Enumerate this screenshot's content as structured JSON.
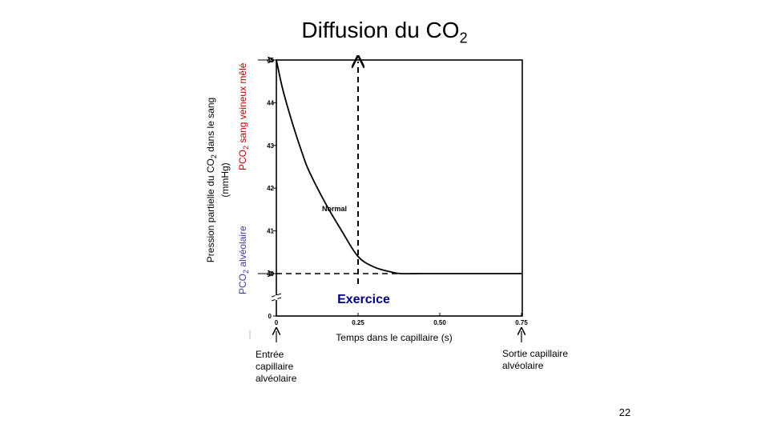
{
  "slide": {
    "title_main": "Diffusion du CO",
    "title_sub": "2",
    "number": "22"
  },
  "chart_data": {
    "type": "line",
    "xlabel": "Temps dans le capillaire (s)",
    "ylabel_line1_pre": "Pression partielle du CO",
    "ylabel_line1_sub": "2",
    "ylabel_line1_post": " dans le sang",
    "ylabel_line2": "(mmHg)",
    "x_ticks": [
      "0",
      "0.25",
      "0.50",
      "0.75"
    ],
    "y_ticks": [
      "40",
      "41",
      "42",
      "43",
      "44",
      "45"
    ],
    "y_zero_tick": "0",
    "xlim": [
      0,
      0.75
    ],
    "ylim": [
      40,
      45
    ],
    "series": [
      {
        "name": "Normal",
        "x": [
          0,
          0.02,
          0.05,
          0.08,
          0.1,
          0.15,
          0.2,
          0.25,
          0.3,
          0.35,
          0.38,
          0.45,
          0.55,
          0.65,
          0.75
        ],
        "y": [
          45,
          44.3,
          43.5,
          42.8,
          42.4,
          41.65,
          41.0,
          40.4,
          40.15,
          40.04,
          40,
          40,
          40,
          40,
          40
        ]
      }
    ],
    "annotations": {
      "exercise_label": "Exercice",
      "exercise_x": 0.25,
      "alveolar_level": 40,
      "venous_level": 45,
      "left_label_venous_pre": "PCO",
      "left_label_venous_sub": "2",
      "left_label_venous_post": " sang veineux mêlé",
      "left_label_alv_pre": "PCO",
      "left_label_alv_sub": "2",
      "left_label_alv_post": " alvéolaire",
      "entry_label": [
        "Entrée",
        "capillaire",
        "alvéolaire"
      ],
      "exit_label": [
        "Sortie capillaire",
        "alvéolaire"
      ]
    },
    "colors": {
      "venous": "#c00000",
      "alveolar": "#3a3aa8",
      "exercise": "#000080"
    },
    "grid": false
  }
}
